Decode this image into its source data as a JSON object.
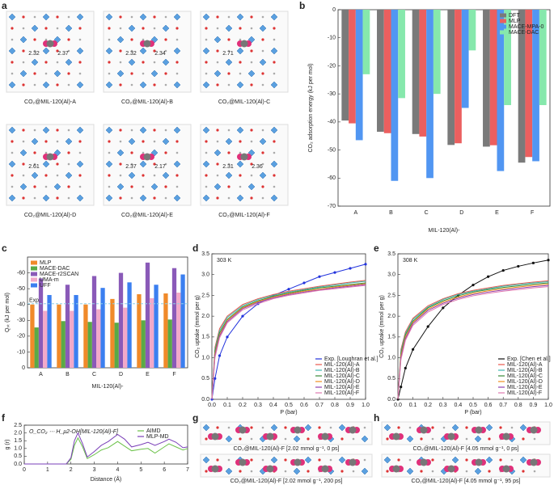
{
  "figure": {
    "panel_labels": [
      "a",
      "b",
      "c",
      "d",
      "e",
      "f",
      "g",
      "h"
    ],
    "structures": [
      {
        "caption": "CO₂@MIL-120(Al)-A",
        "distances": [
          "2.32",
          "2.37"
        ]
      },
      {
        "caption": "CO₂@MIL-120(Al)-B",
        "distances": [
          "2.32",
          "2.34"
        ]
      },
      {
        "caption": "CO₂@MIL-120(Al)-C",
        "distances": [
          "2.71"
        ]
      },
      {
        "caption": "CO₂@MIL-120(Al)-D",
        "distances": [
          "2.61"
        ]
      },
      {
        "caption": "CO₂@MIL-120(Al)-E",
        "distances": [
          "2.37",
          "2.17"
        ]
      },
      {
        "caption": "CO₂@MIL-120(Al)-F",
        "distances": [
          "2.31",
          "2.36"
        ]
      }
    ],
    "snapshots": [
      {
        "caption": "CO₂@MIL-120(Al)-F [2.02 mmol g⁻¹, 0 ps]"
      },
      {
        "caption": "CO₂@MIL-120(Al)-F [2.02 mmol g⁻¹, 200 ps]"
      },
      {
        "caption": "CO₂@MIL-120(Al)-F [4.05 mmol g⁻¹, 0 ps]"
      },
      {
        "caption": "CO₂@MIL-120(Al)-F [4.05 mmol g⁻¹, 95 ps]"
      }
    ]
  },
  "chart_data": [
    {
      "type": "bar",
      "y_label": "CO₂ adsorption energy (kJ per mol)",
      "x_label": "MIL-120(Al)-",
      "categories": [
        "A",
        "B",
        "C",
        "D",
        "E",
        "F"
      ],
      "series": [
        {
          "name": "DFT",
          "color": "#7a7a7a",
          "values": [
            -39.5,
            -43.5,
            -44.3,
            -48.2,
            -48.8,
            -54.5
          ]
        },
        {
          "name": "MLP",
          "color": "#eb5f5f",
          "values": [
            -40.5,
            -44,
            -45.2,
            -47.6,
            -48.3,
            -52.5
          ]
        },
        {
          "name": "MACE-MPA-0",
          "color": "#5196f2",
          "values": [
            -46.5,
            -61,
            -60,
            -35,
            -57.5,
            -54
          ]
        },
        {
          "name": "MACE-DAC",
          "color": "#86e8ac",
          "values": [
            -23,
            -31.5,
            -30,
            -14.5,
            -34,
            -34
          ]
        }
      ],
      "ylim": [
        -70,
        0
      ],
      "yticks": [
        0,
        -10,
        -20,
        -30,
        -40,
        -50,
        -60,
        -70
      ],
      "legend": "top-right"
    },
    {
      "type": "bar",
      "y_label": "Qₛₜ (kJ per mol)",
      "x_label": "MIL-120(Al)-",
      "categories": [
        "A",
        "B",
        "C",
        "D",
        "E",
        "F"
      ],
      "series": [
        {
          "name": "MLP",
          "color": "#f08a2a",
          "values": [
            -40,
            -40,
            -40,
            -43.5,
            -46.5,
            -47
          ]
        },
        {
          "name": "MACE-DAC",
          "color": "#5aaa46",
          "values": [
            -25.5,
            -29.5,
            -29,
            -28.5,
            -30,
            -30.5
          ]
        },
        {
          "name": "MACE-r2SCAN",
          "color": "#8a5ab8",
          "values": [
            -56.5,
            -52.5,
            -58,
            -60,
            -66.5,
            -63
          ]
        },
        {
          "name": "UMA-m",
          "color": "#f2a9c9",
          "values": [
            -36,
            -36,
            -37,
            -38,
            -44,
            -47.5
          ]
        },
        {
          "name": "UFF",
          "color": "#3b7ff0",
          "values": [
            -46,
            -46,
            -50.5,
            -54,
            -52.5,
            -59
          ]
        }
      ],
      "exp_line": {
        "label": "Exp.",
        "value": -40.5,
        "color": "#8fd0e8"
      },
      "ylim": [
        0,
        -70
      ],
      "yticks": [
        0,
        -10,
        -20,
        -30,
        -40,
        -50,
        -60
      ],
      "legend": "top-left"
    },
    {
      "type": "line",
      "annotation": "303 K",
      "y_label": "CO₂ uptake (mmol per g)",
      "x_label": "P (bar)",
      "x": [
        0,
        0.02,
        0.05,
        0.1,
        0.2,
        0.3,
        0.4,
        0.5,
        0.6,
        0.7,
        0.8,
        0.9,
        1.0
      ],
      "series": [
        {
          "name": "Exp. [Loughran et al.]",
          "color": "#2233dd",
          "marker": true,
          "values": [
            0,
            0.5,
            1.05,
            1.5,
            2.0,
            2.3,
            2.5,
            2.65,
            2.8,
            2.95,
            3.05,
            3.15,
            3.25
          ]
        },
        {
          "name": "MIL-120(Al)-A",
          "color": "#e8584e",
          "values": [
            0,
            1.25,
            1.7,
            2.0,
            2.28,
            2.42,
            2.52,
            2.6,
            2.66,
            2.72,
            2.77,
            2.82,
            2.86
          ]
        },
        {
          "name": "MIL-120(Al)-B",
          "color": "#3fb8b0",
          "values": [
            0,
            1.2,
            1.65,
            1.97,
            2.25,
            2.4,
            2.5,
            2.58,
            2.64,
            2.7,
            2.75,
            2.8,
            2.84
          ]
        },
        {
          "name": "MIL-120(Al)-C",
          "color": "#3a8a3a",
          "values": [
            0,
            1.15,
            1.6,
            1.92,
            2.22,
            2.37,
            2.48,
            2.56,
            2.62,
            2.68,
            2.72,
            2.76,
            2.8
          ]
        },
        {
          "name": "MIL-120(Al)-D",
          "color": "#f09020",
          "values": [
            0,
            1.1,
            1.55,
            1.9,
            2.2,
            2.35,
            2.46,
            2.54,
            2.6,
            2.65,
            2.7,
            2.74,
            2.78
          ]
        },
        {
          "name": "MIL-120(Al)-E",
          "color": "#9040b0",
          "values": [
            0,
            1.05,
            1.52,
            1.87,
            2.18,
            2.33,
            2.44,
            2.52,
            2.58,
            2.63,
            2.68,
            2.72,
            2.76
          ]
        },
        {
          "name": "MIL-120(Al)-F",
          "color": "#e07ab0",
          "values": [
            0,
            1.0,
            1.48,
            1.84,
            2.15,
            2.3,
            2.42,
            2.5,
            2.56,
            2.62,
            2.66,
            2.7,
            2.74
          ]
        }
      ],
      "xlim": [
        0,
        1
      ],
      "xticks": [
        {
          "value": 0,
          "label": "0.0"
        },
        0.1,
        0.2,
        0.3,
        0.4,
        0.5,
        0.6,
        0.7,
        0.8,
        0.9,
        {
          "value": 1,
          "label": "1.0"
        }
      ],
      "ylim": [
        0,
        3.5
      ],
      "yticks": [
        {
          "value": 0,
          "label": "0.0"
        },
        0.5,
        {
          "value": 1,
          "label": "1.0"
        },
        1.5,
        {
          "value": 2,
          "label": "2.0"
        },
        2.5,
        {
          "value": 3,
          "label": "3.0"
        },
        3.5
      ],
      "legend": "bottom-right"
    },
    {
      "type": "line",
      "annotation": "308 K",
      "y_label": "CO₂ uptake (mmol per g)",
      "x_label": "P (bar)",
      "x": [
        0,
        0.02,
        0.05,
        0.1,
        0.2,
        0.3,
        0.4,
        0.5,
        0.6,
        0.7,
        0.8,
        0.9,
        1.0
      ],
      "series": [
        {
          "name": "Exp. [Chen et al.]",
          "color": "#111111",
          "marker": true,
          "values": [
            0,
            0.3,
            0.75,
            1.2,
            1.75,
            2.2,
            2.5,
            2.75,
            2.95,
            3.1,
            3.2,
            3.28,
            3.35
          ]
        },
        {
          "name": "MIL-120(Al)-A",
          "color": "#e8584e",
          "values": [
            0,
            1.2,
            1.62,
            1.95,
            2.25,
            2.42,
            2.54,
            2.62,
            2.68,
            2.74,
            2.78,
            2.82,
            2.85
          ]
        },
        {
          "name": "MIL-120(Al)-B",
          "color": "#3fb8b0",
          "values": [
            0,
            1.15,
            1.58,
            1.92,
            2.22,
            2.4,
            2.52,
            2.6,
            2.66,
            2.72,
            2.76,
            2.8,
            2.83
          ]
        },
        {
          "name": "MIL-120(Al)-C",
          "color": "#3a8a3a",
          "values": [
            0,
            1.1,
            1.55,
            1.88,
            2.2,
            2.37,
            2.49,
            2.58,
            2.64,
            2.69,
            2.73,
            2.77,
            2.8
          ]
        },
        {
          "name": "MIL-120(Al)-D",
          "color": "#f09020",
          "values": [
            0,
            1.05,
            1.5,
            1.85,
            2.17,
            2.34,
            2.46,
            2.55,
            2.61,
            2.66,
            2.7,
            2.74,
            2.77
          ]
        },
        {
          "name": "MIL-120(Al)-E",
          "color": "#9040b0",
          "values": [
            0,
            1.0,
            1.46,
            1.82,
            2.14,
            2.31,
            2.43,
            2.52,
            2.58,
            2.63,
            2.67,
            2.71,
            2.74
          ]
        },
        {
          "name": "MIL-120(Al)-F",
          "color": "#e07ab0",
          "values": [
            0,
            0.95,
            1.42,
            1.78,
            2.1,
            2.28,
            2.4,
            2.49,
            2.55,
            2.6,
            2.64,
            2.68,
            2.71
          ]
        }
      ],
      "xlim": [
        0,
        1
      ],
      "xticks": [
        {
          "value": 0,
          "label": "0.0"
        },
        0.1,
        0.2,
        0.3,
        0.4,
        0.5,
        0.6,
        0.7,
        0.8,
        0.9,
        {
          "value": 1,
          "label": "1.0"
        }
      ],
      "ylim": [
        0,
        3.5
      ],
      "yticks": [
        {
          "value": 0,
          "label": "0.0"
        },
        0.5,
        {
          "value": 1,
          "label": "1.0"
        },
        1.5,
        {
          "value": 2,
          "label": "2.0"
        },
        2.5,
        {
          "value": 3,
          "label": "3.0"
        },
        3.5
      ],
      "legend": "bottom-right"
    },
    {
      "type": "line",
      "annotation": "O_CO₂ ⋯ H_μ2-OH[MIL-120(Al)-F]",
      "y_label": "g (r)",
      "x_label": "Distance (Å)",
      "x": [
        0,
        1,
        1.8,
        2.0,
        2.15,
        2.3,
        2.5,
        2.7,
        3.0,
        3.3,
        3.6,
        4.0,
        4.3,
        4.6,
        5.0,
        5.3,
        5.6,
        6.0,
        6.2,
        6.5,
        6.8,
        7.0
      ],
      "series": [
        {
          "name": "AIMD",
          "color": "#6cc24a",
          "values": [
            0,
            0,
            0,
            0.3,
            1.2,
            1.68,
            1.1,
            0.35,
            0.6,
            0.9,
            1.05,
            1.45,
            1.15,
            0.85,
            0.95,
            1.0,
            0.7,
            1.1,
            1.3,
            1.1,
            0.9,
            1.0
          ]
        },
        {
          "name": "MLP-MD",
          "color": "#7a3fb8",
          "values": [
            0,
            0,
            0,
            0.4,
            1.5,
            2.0,
            1.3,
            0.45,
            0.8,
            1.2,
            1.45,
            1.9,
            1.6,
            1.1,
            1.25,
            1.4,
            1.2,
            1.45,
            1.6,
            1.4,
            1.05,
            1.1
          ]
        }
      ],
      "xlim": [
        0,
        7
      ],
      "xticks": [
        0,
        1,
        2,
        3,
        4,
        5,
        6,
        7
      ],
      "ylim": [
        0,
        2.5
      ],
      "yticks": [
        {
          "value": 0,
          "label": "0.0"
        },
        0.5,
        {
          "value": 1,
          "label": "1.0"
        },
        1.5,
        {
          "value": 2,
          "label": "2.0"
        },
        2.5
      ],
      "legend": "top-right"
    }
  ]
}
